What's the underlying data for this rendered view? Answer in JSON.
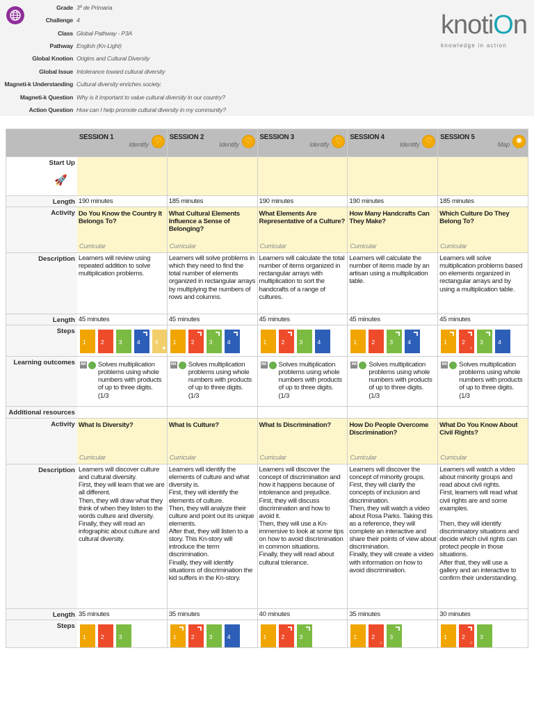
{
  "header": {
    "fields": [
      {
        "label": "Grade",
        "value": "3º de Primaria"
      },
      {
        "label": "Challenge",
        "value": "4"
      },
      {
        "label": "Class",
        "value": "Global Pathway - P3A"
      },
      {
        "label": "Pathway",
        "value": "English (Kn-Light)"
      },
      {
        "label": "Global Knotion",
        "value": "Origins and Cultural Diversity"
      },
      {
        "label": "Global Issue",
        "value": "Intolerance toward cultural diversity"
      },
      {
        "label": "Magneti-k Understanding",
        "value": "Cultural diversity enriches society."
      },
      {
        "label": "Magneti-k Question",
        "value": "Why is it important to value cultural diversity in our country?"
      },
      {
        "label": "Action Question",
        "value": "How can I help promote cultural diversity in my community?"
      }
    ],
    "logo": {
      "word_a": "knoti",
      "word_o": "O",
      "word_b": "n",
      "tagline": "knowledge in action"
    },
    "globe_icon": "globe-icon"
  },
  "colors": {
    "orange": "#f0a500",
    "red": "#ee4b2b",
    "green": "#7cbb42",
    "blue": "#2e5fb8",
    "pale": "#f2cf6b",
    "yellow_bg": "#fdf6ca",
    "header_bg": "#bdbdbd"
  },
  "labels": {
    "start_up": "Start Up",
    "length": "Length",
    "activity": "Activity",
    "description": "Description",
    "steps": "Steps",
    "learning_outcomes": "Learning outcomes",
    "additional_resources": "Additional resources",
    "curricular": "Curricular",
    "ma": "MA"
  },
  "sessions": [
    {
      "title": "SESSION 1",
      "phase": "Identify",
      "badge": "♡",
      "length": "190 minutes"
    },
    {
      "title": "SESSION 2",
      "phase": "Identify",
      "badge": "♡",
      "length": "185 minutes"
    },
    {
      "title": "SESSION 3",
      "phase": "Identify",
      "badge": "♡",
      "length": "190 minutes"
    },
    {
      "title": "SESSION 4",
      "phase": "Identify",
      "badge": "♡",
      "length": "190 minutes"
    },
    {
      "title": "SESSION 5",
      "phase": "Map",
      "badge": "✺",
      "length": "185 minutes"
    }
  ],
  "activity1": [
    {
      "title": "Do You Know the Country It Belongs To?",
      "description": "Learners will review using repeated addition to solve multiplication problems.",
      "length": "45 minutes",
      "steps": [
        {
          "n": "1",
          "c": "orange",
          "bars": false,
          "sub": ""
        },
        {
          "n": "2",
          "c": "red",
          "bars": false,
          "sub": ""
        },
        {
          "n": "3",
          "c": "green",
          "bars": false,
          "sub": ""
        },
        {
          "n": "4",
          "c": "blue",
          "bars": true,
          "sub": ""
        },
        {
          "n": "5",
          "c": "pale",
          "bars": false,
          "sub": "◆"
        }
      ]
    },
    {
      "title": "What Cultural Elements Influence a Sense of Belonging?",
      "description": "Learners will solve problems in which they need to find the total number of elements organized in rectangular arrays by multiplying the numbers of rows and columns.",
      "length": "45 minutes",
      "steps": [
        {
          "n": "1",
          "c": "orange",
          "bars": false,
          "sub": ""
        },
        {
          "n": "2",
          "c": "red",
          "bars": true,
          "sub": ""
        },
        {
          "n": "3",
          "c": "green",
          "bars": true,
          "sub": ""
        },
        {
          "n": "4",
          "c": "blue",
          "bars": true,
          "sub": ""
        }
      ]
    },
    {
      "title": "What Elements Are Representative of a Culture?",
      "description": "Learners will calculate the total number of items organized in rectangular arrays with multiplication to sort the handcrafts of a range of cultures.",
      "length": "45 minutes",
      "steps": [
        {
          "n": "1",
          "c": "orange",
          "bars": false,
          "sub": ""
        },
        {
          "n": "2",
          "c": "red",
          "bars": true,
          "sub": ""
        },
        {
          "n": "3",
          "c": "green",
          "bars": false,
          "sub": ""
        },
        {
          "n": "4",
          "c": "blue",
          "bars": false,
          "sub": ""
        }
      ]
    },
    {
      "title": "How Many Handcrafts Can They Make?",
      "description": "Learners will calculate the number of items made by an artisan using a multiplication table.",
      "length": "45 minutes",
      "steps": [
        {
          "n": "1",
          "c": "orange",
          "bars": false,
          "sub": ""
        },
        {
          "n": "2",
          "c": "red",
          "bars": false,
          "sub": ""
        },
        {
          "n": "3",
          "c": "green",
          "bars": true,
          "sub": ""
        },
        {
          "n": "4",
          "c": "blue",
          "bars": true,
          "sub": ""
        }
      ]
    },
    {
      "title": "Which Culture Do They Belong To?",
      "description": "Learners will solve multiplication problems based on elements organized in rectangular arrays and by using a multiplication table.",
      "length": "45 minutes",
      "steps": [
        {
          "n": "1",
          "c": "orange",
          "bars": true,
          "sub": ""
        },
        {
          "n": "2",
          "c": "red",
          "bars": true,
          "sub": "⌂"
        },
        {
          "n": "3",
          "c": "green",
          "bars": true,
          "sub": ""
        },
        {
          "n": "4",
          "c": "blue",
          "bars": false,
          "sub": ""
        }
      ]
    }
  ],
  "outcome_text": "Solves multiplication problems using whole numbers with products of up to three digits. (1/3",
  "activity2": [
    {
      "title": "What Is Diversity?",
      "description": "Learners will discover culture and cultural diversity.\nFirst, they will learn that we are all different.\nThen, they will draw what they think of when they listen to the words culture and diversity.\nFinally, they will read an infographic about culture and cultural diversity.",
      "length": "35 minutes",
      "steps": [
        {
          "n": "1",
          "c": "orange",
          "bars": false,
          "sub": ""
        },
        {
          "n": "2",
          "c": "red",
          "bars": false,
          "sub": ""
        },
        {
          "n": "3",
          "c": "green",
          "bars": false,
          "sub": ""
        }
      ]
    },
    {
      "title": "What Is Culture?",
      "description": "Learners will identify the elements of culture and what diversity is.\nFirst, they will identify the elements of culture.\nThen, they will analyze their culture and point out its unique elements.\nAfter that, they will listen to a story. This Kn-story will introduce the term discrimination.\nFinally, they will identify situations of discrimination the kid suffers in the Kn-story.",
      "length": "35 minutes",
      "steps": [
        {
          "n": "1",
          "c": "orange",
          "bars": true,
          "sub": ""
        },
        {
          "n": "2",
          "c": "red",
          "bars": true,
          "sub": ""
        },
        {
          "n": "3",
          "c": "green",
          "bars": false,
          "sub": ""
        },
        {
          "n": "4",
          "c": "blue",
          "bars": false,
          "sub": ""
        }
      ]
    },
    {
      "title": "What Is Discrimination?",
      "description": "Learners will discover the concept of discrimination and how it happens because of intolerance and prejudice.\nFirst, they will discuss discrimination and how to avoid it.\nThen, they will use a Kn-immersive to look at some tips on how to avoid discrimination in common situations.\nFinally, they will read about cultural tolerance.",
      "length": "40 minutes",
      "steps": [
        {
          "n": "1",
          "c": "orange",
          "bars": false,
          "sub": ""
        },
        {
          "n": "2",
          "c": "red",
          "bars": true,
          "sub": ""
        },
        {
          "n": "3",
          "c": "green",
          "bars": true,
          "sub": ""
        }
      ]
    },
    {
      "title": "How Do People Overcome Discrimination?",
      "description": "Learners will discover the concept of minority groups.\nFirst, they will clarify the concepts of inclusion and discrimination.\nThen, they will watch a video about Rosa Parks. Taking this as a reference, they will complete an interactive and share their points of view about discrimination.\nFinally, they will create a video with information on how to avoid discrimination.",
      "length": "35 minutes",
      "steps": [
        {
          "n": "1",
          "c": "orange",
          "bars": false,
          "sub": ""
        },
        {
          "n": "2",
          "c": "red",
          "bars": false,
          "sub": "⌂"
        },
        {
          "n": "3",
          "c": "green",
          "bars": true,
          "sub": ""
        }
      ]
    },
    {
      "title": "What Do You Know About Civil Rights?",
      "description": "Learners will watch a video about minority groups and read about civil rights.\nFirst, learners will read what civil rights are and some examples.\n\nThen, they will identify discriminatory situations and decide which civil rights can protect people in those situations.\nAfter that, they will use a gallery and an interactive to confirm their understanding.",
      "length": "30 minutes",
      "steps": [
        {
          "n": "1",
          "c": "orange",
          "bars": false,
          "sub": ""
        },
        {
          "n": "2",
          "c": "red",
          "bars": true,
          "sub": "⌂"
        },
        {
          "n": "3",
          "c": "green",
          "bars": false,
          "sub": ""
        }
      ]
    }
  ]
}
